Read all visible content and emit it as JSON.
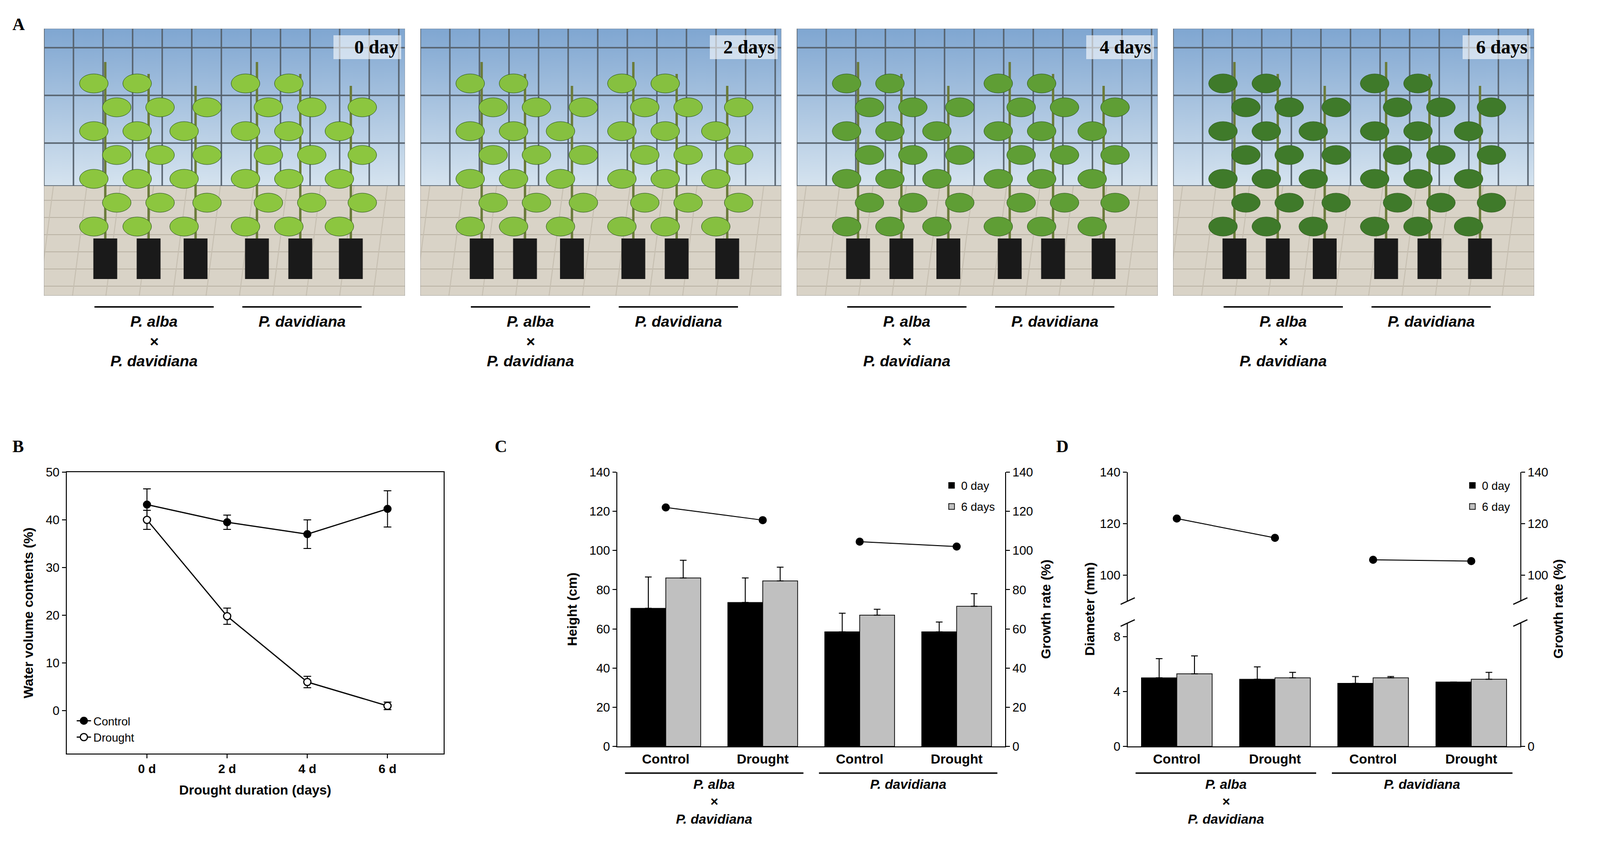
{
  "photos": {
    "panel": "A",
    "frames": [
      {
        "label": "0 day",
        "groups": [
          "P. alba × P. davidiana",
          "P. davidiana"
        ]
      },
      {
        "label": "2 days",
        "groups": [
          "P. alba × P. davidiana",
          "P. davidiana"
        ]
      },
      {
        "label": "4 days",
        "groups": [
          "P. alba × P. davidiana",
          "P. davidiana"
        ]
      },
      {
        "label": "6 days",
        "groups": [
          "P. alba × P. davidiana",
          "P. davidiana"
        ]
      }
    ]
  },
  "chart_data": [
    {
      "panel": "B",
      "type": "line",
      "x_label": "Drought duration (days)",
      "y_label": "Water volume contents (%)",
      "categories": [
        "0 d",
        "2 d",
        "4 d",
        "6 d"
      ],
      "series": [
        {
          "name": "Control",
          "color": "#000000",
          "marker": "filled circle",
          "values": [
            43.2,
            39.5,
            37.0,
            42.3
          ],
          "errors": [
            3.3,
            1.5,
            3.0,
            3.8
          ]
        },
        {
          "name": "Drought",
          "color": "#000000",
          "marker": "open circle",
          "values": [
            40.0,
            19.8,
            6.0,
            1.0
          ],
          "errors": [
            2.0,
            1.7,
            1.2,
            0.8
          ]
        }
      ],
      "ylim": [
        -9,
        50
      ],
      "yticks": [
        0,
        10,
        20,
        30,
        40,
        50
      ],
      "legend": "lower left",
      "grid": false
    },
    {
      "panel": "C",
      "type": "bar",
      "y_label": "Height (cm)",
      "y2_label": "Growth rate (%)",
      "categories": [
        "Control",
        "Drought",
        "Control",
        "Drought"
      ],
      "groups": [
        {
          "label": "P. alba × P. davidiana",
          "first": 0,
          "last": 1
        },
        {
          "label": "P. davidiana",
          "first": 2,
          "last": 3
        }
      ],
      "series": [
        {
          "name": "0 day",
          "color": "#000000",
          "values": [
            70.5,
            73.5,
            58.5,
            58.5
          ],
          "errors": [
            16.0,
            12.5,
            9.5,
            5.0
          ]
        },
        {
          "name": "6 days",
          "color": "#c0c0c0",
          "values": [
            86.0,
            84.5,
            67.0,
            71.5
          ],
          "errors": [
            9.0,
            7.0,
            3.0,
            6.5
          ]
        }
      ],
      "growth_rate": {
        "type": "line",
        "axis": "y2",
        "color": "#000000",
        "marker": "filled circle",
        "values": [
          122.0,
          115.5,
          104.5,
          102.0
        ]
      },
      "ylim": [
        0,
        140
      ],
      "yticks": [
        0,
        20,
        40,
        60,
        80,
        100,
        120,
        140
      ],
      "y2lim": [
        0,
        140
      ],
      "y2ticks": [
        0,
        20,
        40,
        60,
        80,
        100,
        120,
        140
      ],
      "legend": "upper right",
      "grid": false
    },
    {
      "panel": "D",
      "type": "bar",
      "y_label": "Diameter (mm)",
      "y2_label": "Growth rate (%)",
      "categories": [
        "Control",
        "Drought",
        "Control",
        "Drought"
      ],
      "groups": [
        {
          "label": "P. alba × P. davidiana",
          "first": 0,
          "last": 1
        },
        {
          "label": "P. davidiana",
          "first": 2,
          "last": 3
        }
      ],
      "series": [
        {
          "name": "0 day",
          "color": "#000000",
          "values": [
            5.0,
            4.9,
            4.6,
            4.7
          ],
          "errors": [
            1.4,
            0.9,
            0.5,
            0.0
          ]
        },
        {
          "name": "6 day",
          "color": "#c0c0c0",
          "values": [
            5.3,
            5.0,
            5.0,
            4.9
          ],
          "errors": [
            1.3,
            0.4,
            0.1,
            0.5
          ]
        }
      ],
      "growth_rate": {
        "type": "line",
        "axis": "y2",
        "color": "#000000",
        "marker": "filled circle",
        "values": [
          122.0,
          114.5,
          106.0,
          105.5
        ]
      },
      "ylim": [
        [
          0,
          9
        ],
        [
          90,
          140
        ]
      ],
      "yticks": [
        0,
        4,
        8,
        100,
        120,
        140
      ],
      "y2lim": [
        [
          0,
          9
        ],
        [
          90,
          140
        ]
      ],
      "y2ticks": [
        0,
        100,
        120,
        140
      ],
      "legend": "upper right",
      "grid": false
    }
  ]
}
